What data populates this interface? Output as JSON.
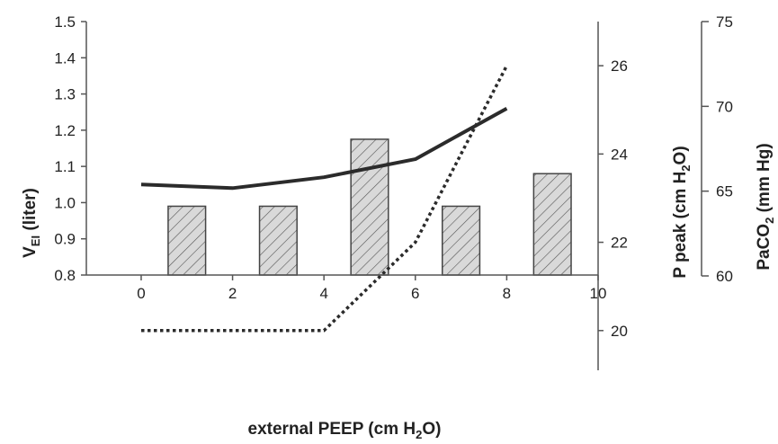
{
  "chart_data": {
    "type": "bar",
    "xlabel": {
      "main": "external PEEP (cm H",
      "sub": "2",
      "end": "O)"
    },
    "x_ticks": [
      "0",
      "2",
      "4",
      "6",
      "8",
      "10"
    ],
    "xlim": [
      -1.2,
      10
    ],
    "ylabel_left": {
      "main": "V",
      "sub": "EI",
      "end": " (liter)"
    },
    "ylim_left": [
      0.8,
      1.5
    ],
    "yticks_left": [
      "0.8",
      "0.9",
      "1.0",
      "1.1",
      "1.2",
      "1.3",
      "1.4",
      "1.5"
    ],
    "ylabel_right1": {
      "main": "P peak (cm H",
      "sub": "2",
      "end": "O)"
    },
    "ylim_right1": [
      19.1,
      27.0
    ],
    "yticks_right1": [
      "20",
      "22",
      "24",
      "26"
    ],
    "ylabel_right2": {
      "main": "PaCO",
      "sub": "2",
      "end": " (mm Hg)"
    },
    "ylim_right2": [
      60,
      75
    ],
    "yticks_right2": [
      "60",
      "65",
      "70",
      "75"
    ],
    "grid": false,
    "series": [
      {
        "kind": "bar",
        "axis": "left",
        "x": [
          1,
          3,
          5,
          7,
          9
        ],
        "values": [
          0.99,
          0.99,
          1.175,
          0.99,
          1.08
        ],
        "style": "hatched"
      },
      {
        "kind": "line",
        "axis": "left",
        "style": "solid",
        "x": [
          0,
          2,
          4,
          6,
          8
        ],
        "values": [
          1.05,
          1.04,
          1.07,
          1.12,
          1.26
        ]
      },
      {
        "kind": "line",
        "axis": "right1",
        "style": "dotted",
        "x": [
          0,
          2,
          4,
          6,
          8
        ],
        "values": [
          20,
          20,
          20,
          22,
          26
        ]
      }
    ]
  }
}
